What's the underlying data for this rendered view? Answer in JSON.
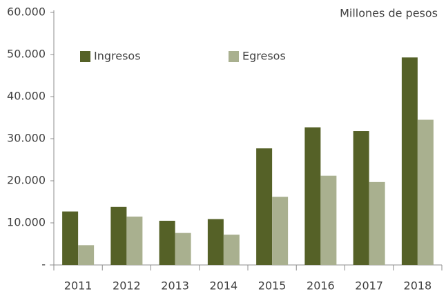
{
  "chart_data": {
    "type": "bar",
    "title": "Millones de pesos",
    "categories": [
      "2011",
      "2012",
      "2013",
      "2014",
      "2015",
      "2016",
      "2017",
      "2018"
    ],
    "series": [
      {
        "name": "Ingresos",
        "color": "#556127",
        "values": [
          12700,
          13800,
          10500,
          10900,
          27700,
          32700,
          31800,
          49300
        ]
      },
      {
        "name": "Egresos",
        "color": "#a9b08f",
        "values": [
          4700,
          11500,
          7600,
          7200,
          16200,
          21200,
          19700,
          34500
        ]
      }
    ],
    "ylim": [
      0,
      60000
    ],
    "yticks": [
      {
        "value": 0,
        "label": "-"
      },
      {
        "value": 10000,
        "label": "10.000"
      },
      {
        "value": 20000,
        "label": "20.000"
      },
      {
        "value": 30000,
        "label": "30.000"
      },
      {
        "value": 40000,
        "label": "40.000"
      },
      {
        "value": 50000,
        "label": "50.000"
      },
      {
        "value": 60000,
        "label": "60.000"
      }
    ],
    "grid": false
  }
}
